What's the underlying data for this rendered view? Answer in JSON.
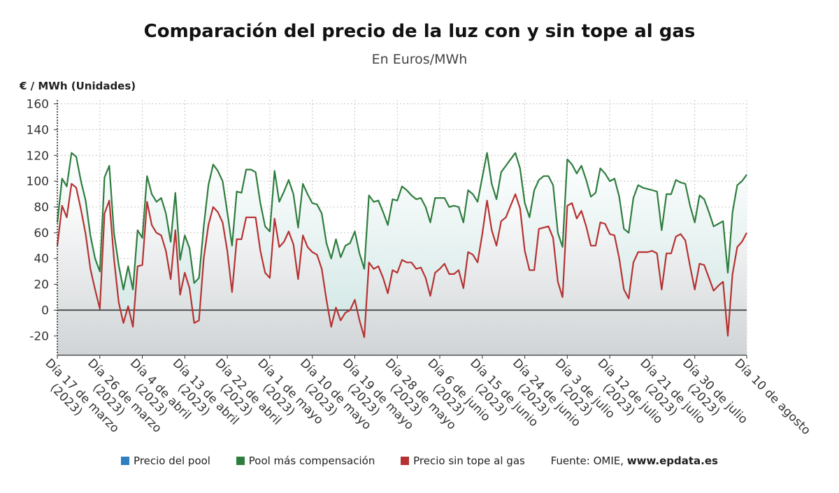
{
  "title": "Comparación del precio de la luz con y sin tope al gas",
  "subtitle": "En Euros/MWh",
  "legend": [
    {
      "label": "Precio del pool",
      "color": "#2f7fc1"
    },
    {
      "label": "Pool más compensación",
      "color": "#2e7d3e"
    },
    {
      "label": "Precio sin tope al gas",
      "color": "#b63232"
    }
  ],
  "source_prefix": "Fuente: OMIE, ",
  "source_site": "www.epdata.es",
  "chart_data": {
    "type": "line",
    "ylabel": "€ / MWh (Unidades)",
    "ylim": [
      -35,
      163
    ],
    "yticks": [
      -20,
      0,
      20,
      40,
      60,
      80,
      100,
      120,
      140,
      160
    ],
    "xlim": [
      0,
      146
    ],
    "grid": true,
    "xtick_labels": [
      {
        "x": 0,
        "line1": "Día 17 de marzo",
        "line2": "(2023)"
      },
      {
        "x": 9,
        "line1": "Día 26 de marzo",
        "line2": "(2023)"
      },
      {
        "x": 18,
        "line1": "Día 4 de abril",
        "line2": "(2023)"
      },
      {
        "x": 27,
        "line1": "Día 13 de abril",
        "line2": "(2023)"
      },
      {
        "x": 36,
        "line1": "Día 22 de abril",
        "line2": "(2023)"
      },
      {
        "x": 45,
        "line1": "Día 1 de mayo",
        "line2": "(2023)"
      },
      {
        "x": 54,
        "line1": "Día 10 de mayo",
        "line2": "(2023)"
      },
      {
        "x": 63,
        "line1": "Día 19 de mayo",
        "line2": "(2023)"
      },
      {
        "x": 72,
        "line1": "Día 28 de mayo",
        "line2": "(2023)"
      },
      {
        "x": 81,
        "line1": "Día 6 de junio",
        "line2": "(2023)"
      },
      {
        "x": 90,
        "line1": "Día 15 de junio",
        "line2": "(2023)"
      },
      {
        "x": 99,
        "line1": "Día 24 de junio",
        "line2": "(2023)"
      },
      {
        "x": 108,
        "line1": "Día 3 de julio",
        "line2": "(2023)"
      },
      {
        "x": 117,
        "line1": "Día 12 de julio",
        "line2": "(2023)"
      },
      {
        "x": 126,
        "line1": "Día 21 de julio",
        "line2": "(2023)"
      },
      {
        "x": 135,
        "line1": "Día 30 de julio",
        "line2": "(2023)"
      },
      {
        "x": 146,
        "line1": "Día 10 de agosto",
        "line2": ""
      }
    ],
    "series": [
      {
        "name": "Pool más compensación",
        "color": "#2e7d3e",
        "values": [
          68,
          102,
          96,
          122,
          119,
          100,
          85,
          58,
          40,
          30,
          103,
          112,
          60,
          35,
          16,
          34,
          16,
          62,
          56,
          104,
          90,
          84,
          87,
          75,
          53,
          91,
          39,
          58,
          48,
          21,
          25,
          65,
          97,
          113,
          108,
          100,
          76,
          50,
          92,
          91,
          109,
          109,
          107,
          83,
          65,
          61,
          108,
          84,
          92,
          101,
          90,
          64,
          98,
          90,
          83,
          82,
          75,
          52,
          40,
          55,
          41,
          50,
          52,
          61,
          44,
          32,
          89,
          84,
          85,
          76,
          66,
          86,
          85,
          96,
          93,
          89,
          86,
          87,
          80,
          68,
          87,
          87,
          87,
          80,
          81,
          80,
          68,
          93,
          90,
          84,
          103,
          122,
          98,
          86,
          107,
          112,
          117,
          122,
          110,
          83,
          72,
          93,
          101,
          104,
          104,
          97,
          60,
          49,
          117,
          113,
          106,
          112,
          101,
          88,
          91,
          110,
          106,
          100,
          102,
          88,
          63,
          60,
          87,
          97,
          95,
          94,
          93,
          92,
          62,
          90,
          90,
          101,
          99,
          98,
          81,
          68,
          89,
          86,
          76,
          65,
          67,
          69,
          29,
          76,
          97,
          100,
          105
        ]
      },
      {
        "name": "Precio sin tope al gas",
        "color": "#b63232",
        "values": [
          50,
          81,
          72,
          98,
          95,
          78,
          59,
          32,
          16,
          1,
          75,
          85,
          40,
          6,
          -10,
          3,
          -13,
          34,
          35,
          84,
          66,
          60,
          58,
          46,
          24,
          62,
          12,
          29,
          17,
          -10,
          -8,
          40,
          66,
          80,
          76,
          68,
          46,
          14,
          55,
          55,
          72,
          72,
          72,
          46,
          29,
          25,
          71,
          49,
          53,
          61,
          51,
          24,
          58,
          49,
          45,
          43,
          32,
          8,
          -13,
          2,
          -8,
          -2,
          0,
          8,
          -8,
          -21,
          37,
          32,
          34,
          25,
          13,
          31,
          29,
          39,
          37,
          37,
          32,
          33,
          25,
          11,
          29,
          32,
          36,
          28,
          28,
          31,
          17,
          45,
          43,
          37,
          59,
          85,
          62,
          50,
          69,
          72,
          81,
          90,
          79,
          46,
          31,
          31,
          63,
          64,
          65,
          56,
          22,
          10,
          81,
          83,
          71,
          77,
          65,
          50,
          50,
          68,
          67,
          59,
          58,
          40,
          16,
          9,
          37,
          45,
          45,
          45,
          46,
          44,
          16,
          44,
          44,
          57,
          59,
          54,
          34,
          16,
          36,
          35,
          25,
          15,
          19,
          22,
          -20,
          28,
          49,
          53,
          60
        ]
      }
    ]
  }
}
